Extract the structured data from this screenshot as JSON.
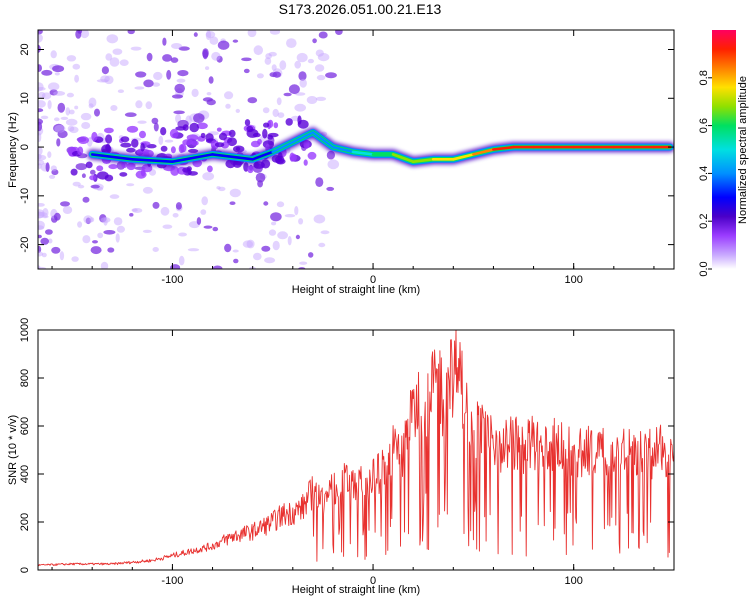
{
  "title": "S173.2026.051.00.21.E13",
  "colors": {
    "snr_line": "#e8312f",
    "axis": "#000000",
    "background": "#ffffff",
    "cmap": [
      "#ffffff",
      "#c8a8ff",
      "#9a3cff",
      "#4a00c8",
      "#0000ff",
      "#0090ff",
      "#00e0e0",
      "#00e060",
      "#90e000",
      "#ffe000",
      "#ff8000",
      "#ff2000",
      "#ff0060"
    ]
  },
  "chart_data": [
    {
      "type": "heatmap",
      "name": "spectrogram",
      "xlabel": "Height of straight line (km)",
      "ylabel": "Frequency (Hz)",
      "xlim": [
        -167,
        150
      ],
      "ylim": [
        -25,
        24
      ],
      "xticks": [
        -100,
        0,
        100
      ],
      "yticks": [
        -20,
        -10,
        0,
        10,
        20
      ],
      "ridge": {
        "x": [
          -140,
          -120,
          -100,
          -80,
          -60,
          -50,
          -40,
          -30,
          -20,
          -10,
          0,
          10,
          20,
          30,
          40,
          50,
          60,
          70,
          80,
          90,
          100,
          110,
          120,
          130,
          140,
          148
        ],
        "frequency": [
          -1.5,
          -2.5,
          -3,
          -1.5,
          -2.5,
          -1,
          1,
          3,
          0,
          -1,
          -1.5,
          -1.5,
          -3,
          -2.5,
          -2.5,
          -1.5,
          -0.5,
          0,
          0,
          0,
          0,
          0,
          0,
          0,
          0,
          0
        ],
        "amplitude": [
          0.35,
          0.3,
          0.3,
          0.3,
          0.35,
          0.35,
          0.4,
          0.45,
          0.4,
          0.5,
          0.55,
          0.6,
          0.65,
          0.7,
          0.75,
          0.8,
          0.85,
          0.9,
          0.95,
          0.9,
          0.95,
          0.9,
          0.95,
          0.95,
          0.95,
          0.95
        ]
      },
      "colorbar": {
        "label": "Normalized spectral amplitude",
        "range": [
          0,
          1
        ],
        "ticks": [
          0,
          0.2,
          0.4,
          0.6,
          0.8
        ],
        "tick_labels": [
          "0.0",
          "0.2",
          "0.4",
          "0.6",
          "0.8"
        ]
      }
    },
    {
      "type": "line",
      "name": "snr",
      "xlabel": "Height of straight line (km)",
      "ylabel": "SNR (10 * v/v)",
      "xlim": [
        -167,
        150
      ],
      "ylim": [
        0,
        1000
      ],
      "xticks": [
        -100,
        0,
        100
      ],
      "yticks": [
        0,
        200,
        400,
        600,
        800,
        1000
      ],
      "x": [
        -167,
        -150,
        -130,
        -110,
        -100,
        -90,
        -80,
        -70,
        -60,
        -50,
        -45,
        -40,
        -35,
        -30,
        -25,
        -20,
        -15,
        -10,
        -5,
        0,
        5,
        10,
        15,
        18,
        22,
        25,
        28,
        32,
        35,
        38,
        40,
        42,
        45,
        48,
        50,
        55,
        60,
        65,
        70,
        75,
        80,
        85,
        90,
        95,
        100,
        110,
        120,
        130,
        140,
        150
      ],
      "y": [
        20,
        25,
        25,
        40,
        60,
        80,
        100,
        140,
        160,
        200,
        230,
        240,
        260,
        330,
        280,
        340,
        360,
        380,
        350,
        380,
        420,
        500,
        480,
        600,
        700,
        720,
        680,
        850,
        700,
        880,
        760,
        980,
        700,
        660,
        600,
        560,
        540,
        520,
        540,
        500,
        530,
        480,
        520,
        500,
        480,
        500,
        500,
        480,
        490,
        500
      ]
    }
  ]
}
